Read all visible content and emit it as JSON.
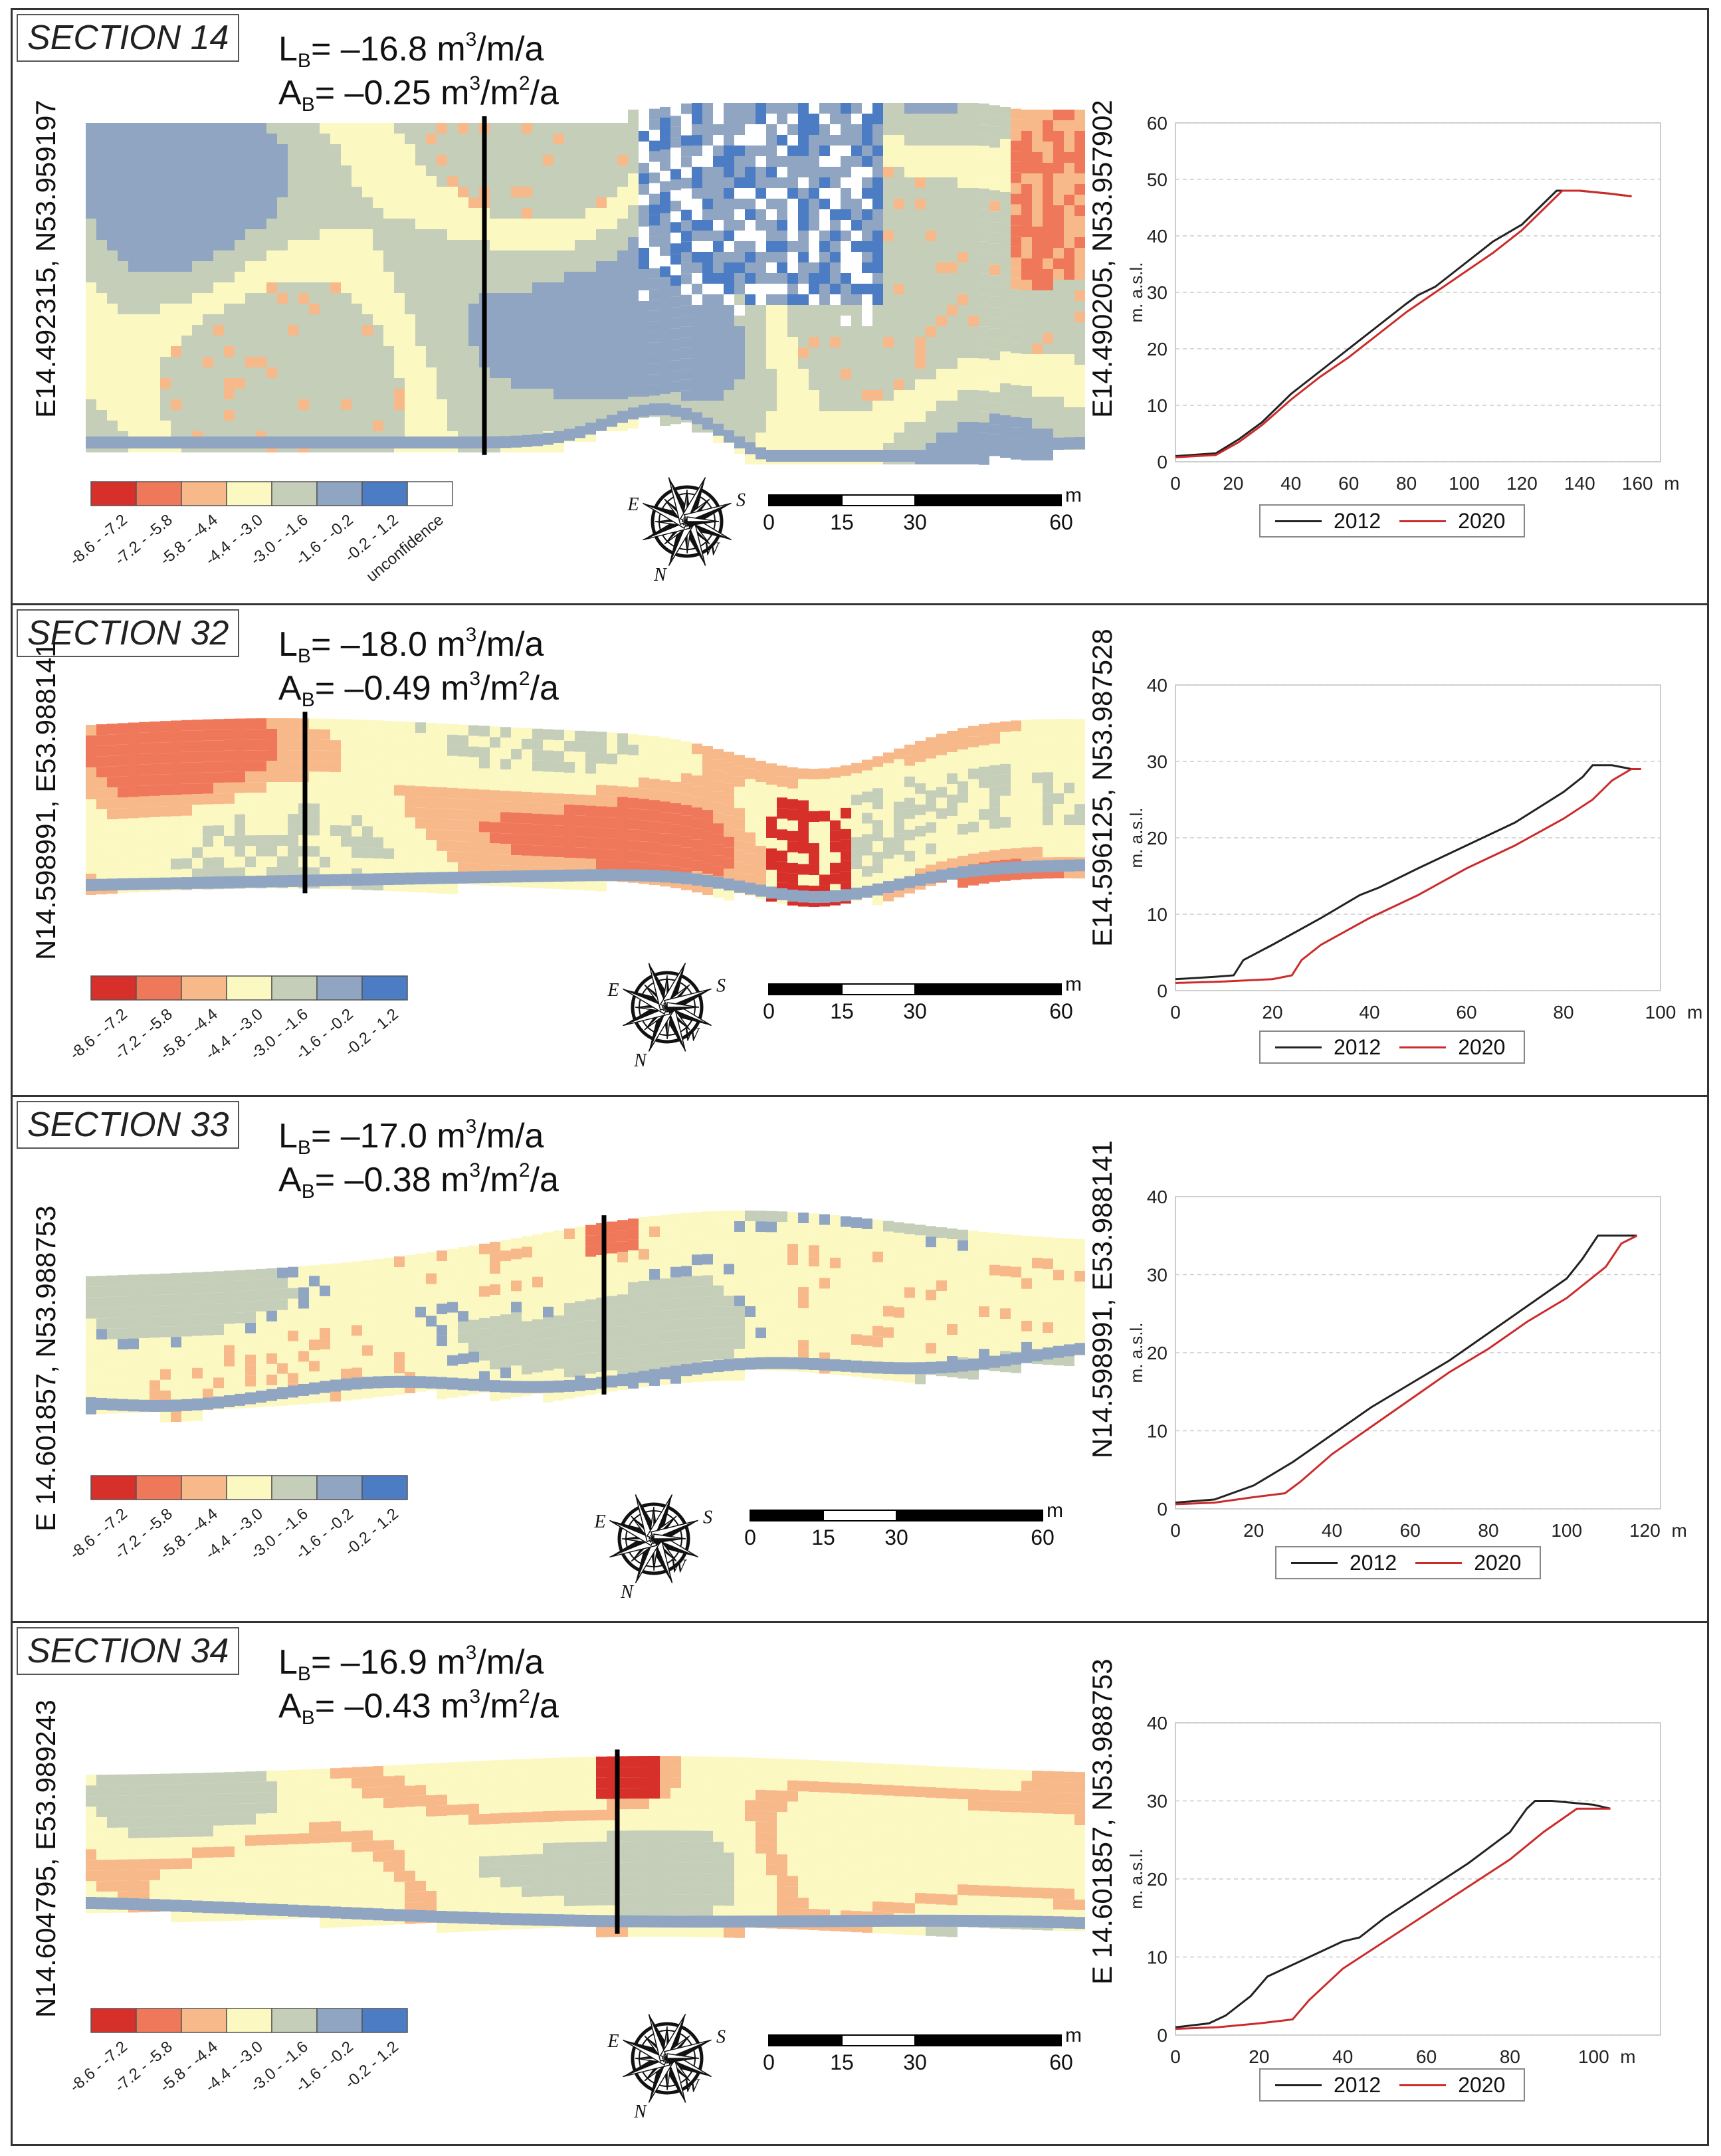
{
  "legend_ranges": [
    "-8.6 - -7.2",
    "-7.2 - -5.8",
    "-5.8 - -4.4",
    "-4.4 - -3.0",
    "-3.0 - -1.6",
    "-1.6 - -0.2",
    "-0.2 - 1.2",
    "unconfidence"
  ],
  "legend_colors": [
    "#d7302a",
    "#f0785a",
    "#f8b98a",
    "#fcf8c2",
    "#c5ceb9",
    "#8fa5c2",
    "#4c7cc4",
    "#ffffff"
  ],
  "scale": {
    "ticks": [
      "0",
      "15",
      "30",
      "60"
    ],
    "unit": "m"
  },
  "compass_letters": {
    "n": "N",
    "s": "S",
    "e": "E",
    "w": "W"
  },
  "profile_common": {
    "ylabel": "m. a.s.l.",
    "unit": "m",
    "series_names": [
      "2012",
      "2020"
    ],
    "colors": [
      "#222222",
      "#cc2b2b"
    ]
  },
  "sections": [
    {
      "title": "SECTION 14",
      "lb_prefix": "L",
      "lb_sub": "B",
      "lb_value": "= –16.8 m",
      "lb_unit_tail": "/m/a",
      "ab_prefix": "A",
      "ab_sub": "B",
      "ab_value": "= –0.25 m",
      "ab_unit_mid": "/m",
      "ab_unit_tail": "/a",
      "left_coord": "E14.492315, N53.959197",
      "right_coord": "E14.490205, N53.957902",
      "show_unconfidence": true,
      "chart_data": {
        "type": "line",
        "ylim": [
          0,
          60
        ],
        "yticks": [
          0,
          10,
          20,
          30,
          40,
          50,
          60
        ],
        "xlim": [
          0,
          168
        ],
        "xticks": [
          0,
          20,
          40,
          60,
          80,
          100,
          120,
          140,
          160
        ],
        "ylabel": "m. a.s.l.",
        "xlabel_unit": "m",
        "series": [
          {
            "name": "2012",
            "x": [
              0,
              14,
              22,
              30,
              40,
              50,
              60,
              70,
              80,
              84,
              90,
              100,
              110,
              120,
              126,
              132,
              134,
              140,
              150,
              158
            ],
            "y": [
              1,
              1.5,
              4,
              7,
              12,
              16,
              20,
              24,
              28,
              29.5,
              31,
              35,
              39,
              42,
              45,
              48,
              48,
              48,
              47.5,
              47
            ]
          },
          {
            "name": "2020",
            "x": [
              0,
              14,
              22,
              30,
              40,
              50,
              60,
              70,
              80,
              90,
              100,
              110,
              120,
              126,
              132,
              134,
              140,
              150,
              158
            ],
            "y": [
              0.8,
              1.2,
              3.5,
              6.5,
              11,
              15,
              18.5,
              22.5,
              26.5,
              30,
              33.5,
              37,
              41,
              44,
              47,
              48,
              48,
              47.5,
              47
            ]
          }
        ]
      }
    },
    {
      "title": "SECTION 32",
      "lb_prefix": "L",
      "lb_sub": "B",
      "lb_value": "= –18.0 m",
      "lb_unit_tail": "/m/a",
      "ab_prefix": "A",
      "ab_sub": "B",
      "ab_value": "= –0.49 m",
      "ab_unit_mid": "/m",
      "ab_unit_tail": "/a",
      "left_coord": "N14.598991, E53.988141",
      "right_coord": "E14.596125, N53.987528",
      "show_unconfidence": false,
      "chart_data": {
        "type": "line",
        "ylim": [
          0,
          40
        ],
        "yticks": [
          0,
          10,
          20,
          30,
          40
        ],
        "xlim": [
          0,
          100
        ],
        "xticks": [
          0,
          20,
          40,
          60,
          80,
          100
        ],
        "ylabel": "m. a.s.l.",
        "xlabel_unit": "m",
        "series": [
          {
            "name": "2012",
            "x": [
              0,
              8,
              12,
              14,
              20,
              30,
              38,
              42,
              50,
              60,
              70,
              80,
              84,
              86,
              90,
              94
            ],
            "y": [
              1.5,
              1.8,
              2,
              4,
              6,
              9.5,
              12.5,
              13.5,
              16,
              19,
              22,
              26,
              28,
              29.5,
              29.5,
              29
            ]
          },
          {
            "name": "2020",
            "x": [
              0,
              10,
              20,
              24,
              26,
              30,
              40,
              50,
              60,
              70,
              80,
              86,
              90,
              94,
              96
            ],
            "y": [
              1,
              1.2,
              1.5,
              2,
              4,
              6,
              9.5,
              12.5,
              16,
              19,
              22.5,
              25,
              27.5,
              29,
              29
            ]
          }
        ]
      }
    },
    {
      "title": "SECTION 33",
      "lb_prefix": "L",
      "lb_sub": "B",
      "lb_value": "= –17.0 m",
      "lb_unit_tail": "/m/a",
      "ab_prefix": "A",
      "ab_sub": "B",
      "ab_value": "= –0.38 m",
      "ab_unit_mid": "/m",
      "ab_unit_tail": "/a",
      "left_coord": "E 14.601857, N53.988753",
      "right_coord": "N14.598991, E53.988141",
      "show_unconfidence": false,
      "chart_data": {
        "type": "line",
        "ylim": [
          0,
          40
        ],
        "yticks": [
          0,
          10,
          20,
          30,
          40
        ],
        "xlim": [
          0,
          124
        ],
        "xticks": [
          0,
          20,
          40,
          60,
          80,
          100,
          120
        ],
        "ylabel": "m. a.s.l.",
        "xlabel_unit": "m",
        "series": [
          {
            "name": "2012",
            "x": [
              0,
              10,
              20,
              30,
              40,
              50,
              60,
              70,
              80,
              90,
              100,
              104,
              108,
              112,
              118
            ],
            "y": [
              0.8,
              1.2,
              3,
              6,
              9.5,
              13,
              16,
              19,
              22.5,
              26,
              29.5,
              32,
              35,
              35,
              35
            ]
          },
          {
            "name": "2020",
            "x": [
              0,
              10,
              20,
              28,
              32,
              40,
              50,
              60,
              70,
              80,
              90,
              100,
              110,
              114,
              118
            ],
            "y": [
              0.6,
              0.8,
              1.5,
              2,
              3.5,
              7,
              10.5,
              14,
              17.5,
              20.5,
              24,
              27,
              31,
              34,
              35
            ]
          }
        ]
      }
    },
    {
      "title": "SECTION 34",
      "lb_prefix": "L",
      "lb_sub": "B",
      "lb_value": "= –16.9 m",
      "lb_unit_tail": "/m/a",
      "ab_prefix": "A",
      "ab_sub": "B",
      "ab_value": "= –0.43 m",
      "ab_unit_mid": "/m",
      "ab_unit_tail": "/a",
      "left_coord": "N14.604795, E53.989243",
      "right_coord": "E 14.601857, N53.988753",
      "show_unconfidence": false,
      "chart_data": {
        "type": "line",
        "ylim": [
          0,
          40
        ],
        "yticks": [
          0,
          10,
          20,
          30,
          40
        ],
        "xlim": [
          0,
          116
        ],
        "xticks": [
          0,
          20,
          40,
          60,
          80,
          100
        ],
        "ylabel": "m. a.s.l.",
        "xlabel_unit": "m",
        "series": [
          {
            "name": "2012",
            "x": [
              0,
              8,
              12,
              18,
              22,
              30,
              40,
              44,
              50,
              60,
              70,
              80,
              84,
              86,
              90,
              100,
              104
            ],
            "y": [
              1,
              1.5,
              2.5,
              5,
              7.5,
              9.5,
              12,
              12.5,
              15,
              18.5,
              22,
              26,
              29,
              30,
              30,
              29.5,
              29
            ]
          },
          {
            "name": "2020",
            "x": [
              0,
              10,
              20,
              28,
              32,
              40,
              50,
              60,
              70,
              80,
              88,
              92,
              96,
              100,
              104
            ],
            "y": [
              0.8,
              1,
              1.5,
              2,
              4.5,
              8.5,
              12,
              15.5,
              19,
              22.5,
              26,
              27.5,
              29,
              29,
              29
            ]
          }
        ]
      }
    }
  ]
}
